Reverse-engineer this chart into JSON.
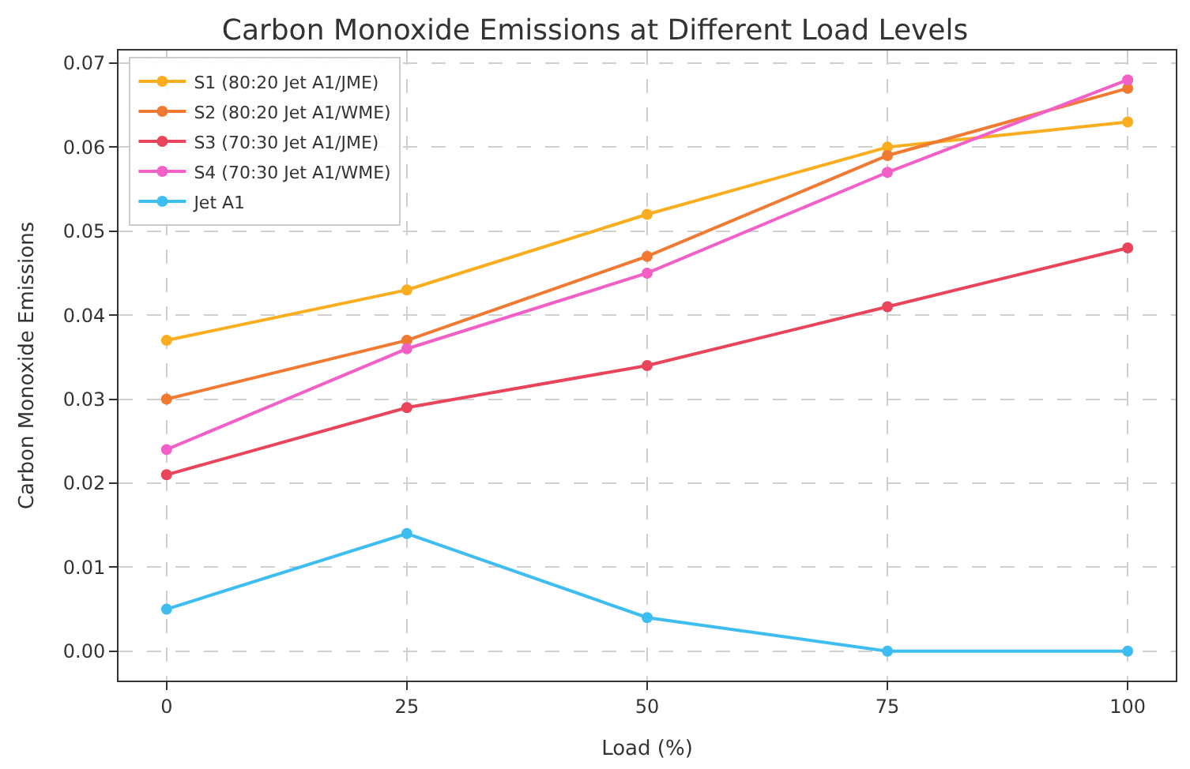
{
  "chart_data": {
    "type": "line",
    "title": "Carbon Monoxide Emissions at Different Load Levels",
    "xlabel": "Load (%)",
    "ylabel": "Carbon Monoxide Emissions",
    "x": [
      0,
      25,
      50,
      75,
      100
    ],
    "series": [
      {
        "name": "S1 (80:20 Jet A1/JME)",
        "color": "#f9ad1f",
        "values": [
          0.037,
          0.043,
          0.052,
          0.06,
          0.063
        ]
      },
      {
        "name": "S2 (80:20 Jet A1/WME)",
        "color": "#f07a32",
        "values": [
          0.03,
          0.037,
          0.047,
          0.059,
          0.067
        ]
      },
      {
        "name": "S3 (70:30 Jet A1/JME)",
        "color": "#e9445a",
        "values": [
          0.021,
          0.029,
          0.034,
          0.041,
          0.048
        ]
      },
      {
        "name": "S4 (70:30 Jet A1/WME)",
        "color": "#f25fc6",
        "values": [
          0.024,
          0.036,
          0.045,
          0.057,
          0.068
        ]
      },
      {
        "name": "Jet A1",
        "color": "#3ebef0",
        "values": [
          0.005,
          0.014,
          0.004,
          0.0,
          0.0
        ]
      }
    ],
    "xlim": [
      -5,
      105
    ],
    "xticks": [
      0,
      25,
      50,
      75,
      100
    ],
    "ylim": [
      -0.0035,
      0.0715
    ],
    "yticks": [
      {
        "value": 0,
        "label": "0.00"
      },
      {
        "value": 0.01,
        "label": "0.01"
      },
      {
        "value": 0.02,
        "label": "0.02"
      },
      {
        "value": 0.03,
        "label": "0.03"
      },
      {
        "value": 0.04,
        "label": "0.04"
      },
      {
        "value": 0.05,
        "label": "0.05"
      },
      {
        "value": 0.06,
        "label": "0.06"
      },
      {
        "value": 0.07,
        "label": "0.07"
      }
    ],
    "grid": true,
    "legend": "top left",
    "marker": "circle",
    "line_style": "solid"
  }
}
